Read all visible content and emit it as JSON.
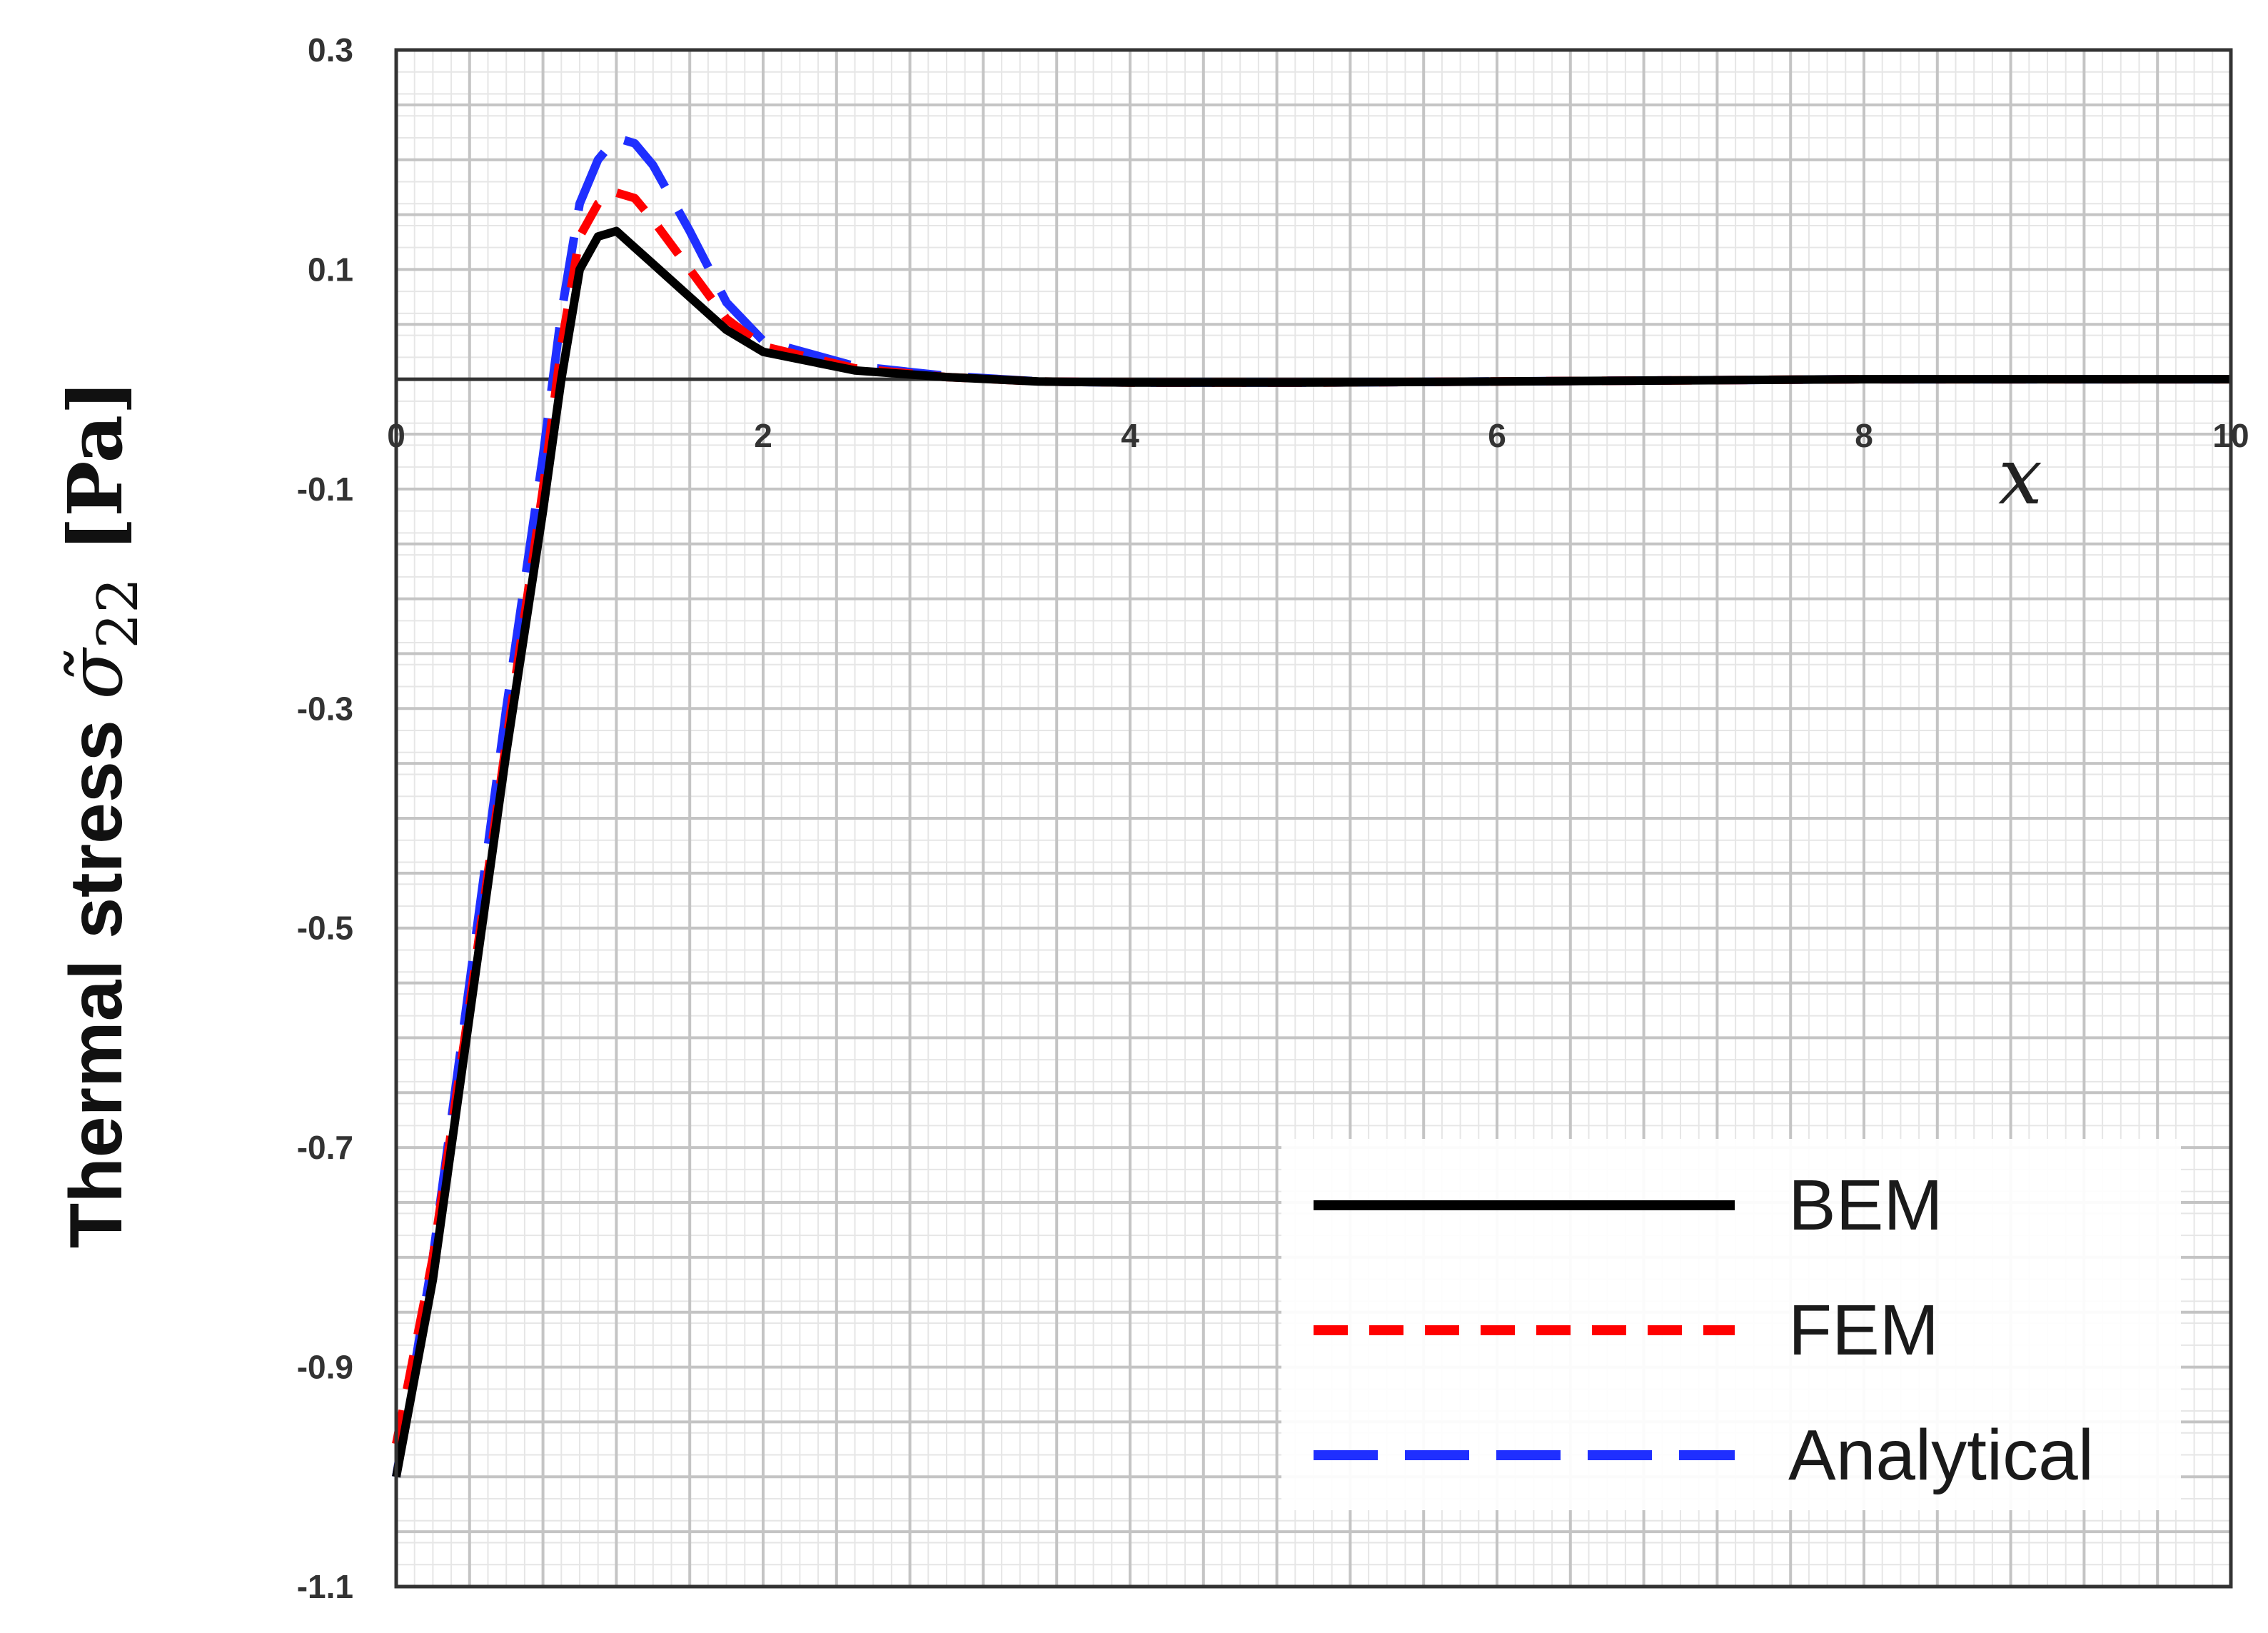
{
  "chart_data": {
    "type": "line",
    "title": "",
    "xlabel": "x",
    "ylabel": "Thermal stress σ̃₂₂ [Pa]",
    "ylabel_parts": {
      "prefix": "Thermal stress ",
      "sigma": "σ̃",
      "subscript": "22",
      "unit": " [Pa]"
    },
    "xlim": [
      0,
      10
    ],
    "ylim": [
      -1.1,
      0.3
    ],
    "xticks": [
      "0",
      "2",
      "4",
      "6",
      "8",
      "10"
    ],
    "yticks": [
      "0.3",
      "0.1",
      "-0.1",
      "-0.3",
      "-0.5",
      "-0.7",
      "-0.9",
      "-1.1"
    ],
    "grid": true,
    "legend_position": "bottom-right",
    "series": [
      {
        "name": "BEM",
        "color": "#000000",
        "style": "solid",
        "x": [
          0,
          0.2,
          0.4,
          0.6,
          0.8,
          0.9,
          1.0,
          1.1,
          1.2,
          1.3,
          1.4,
          1.6,
          1.8,
          2.0,
          2.5,
          3.0,
          3.5,
          4.0,
          5.0,
          6.0,
          7.0,
          8.0,
          9.0,
          10.0
        ],
        "y": [
          -1.0,
          -0.82,
          -0.58,
          -0.34,
          -0.12,
          0.0,
          0.1,
          0.13,
          0.135,
          0.12,
          0.105,
          0.075,
          0.045,
          0.025,
          0.008,
          0.002,
          -0.002,
          -0.003,
          -0.003,
          -0.002,
          -0.001,
          0.0,
          0.0,
          0.0
        ]
      },
      {
        "name": "FEM",
        "color": "#ff0000",
        "style": "dashed",
        "x": [
          0,
          0.2,
          0.4,
          0.6,
          0.8,
          0.9,
          1.0,
          1.1,
          1.2,
          1.3,
          1.4,
          1.6,
          1.8,
          2.0,
          2.5,
          3.0,
          3.5,
          4.0,
          5.0,
          6.0,
          7.0,
          8.0,
          9.0,
          10.0
        ],
        "y": [
          -0.97,
          -0.8,
          -0.57,
          -0.33,
          -0.1,
          0.03,
          0.13,
          0.16,
          0.17,
          0.165,
          0.145,
          0.1,
          0.055,
          0.03,
          0.01,
          0.002,
          -0.002,
          -0.003,
          -0.003,
          -0.002,
          -0.001,
          0.0,
          0.0,
          0.0
        ]
      },
      {
        "name": "Analytical",
        "color": "#1f2fff",
        "style": "long-dashed",
        "x": [
          0,
          0.2,
          0.4,
          0.6,
          0.8,
          0.9,
          1.0,
          1.1,
          1.2,
          1.3,
          1.4,
          1.6,
          1.8,
          2.0,
          2.5,
          3.0,
          3.5,
          4.0,
          5.0,
          6.0,
          7.0,
          8.0,
          9.0,
          10.0
        ],
        "y": [
          -1.0,
          -0.8,
          -0.55,
          -0.3,
          -0.07,
          0.06,
          0.16,
          0.2,
          0.22,
          0.215,
          0.195,
          0.135,
          0.07,
          0.035,
          0.012,
          0.003,
          -0.002,
          -0.003,
          -0.003,
          -0.002,
          -0.001,
          0.0,
          0.0,
          0.0
        ]
      }
    ]
  }
}
